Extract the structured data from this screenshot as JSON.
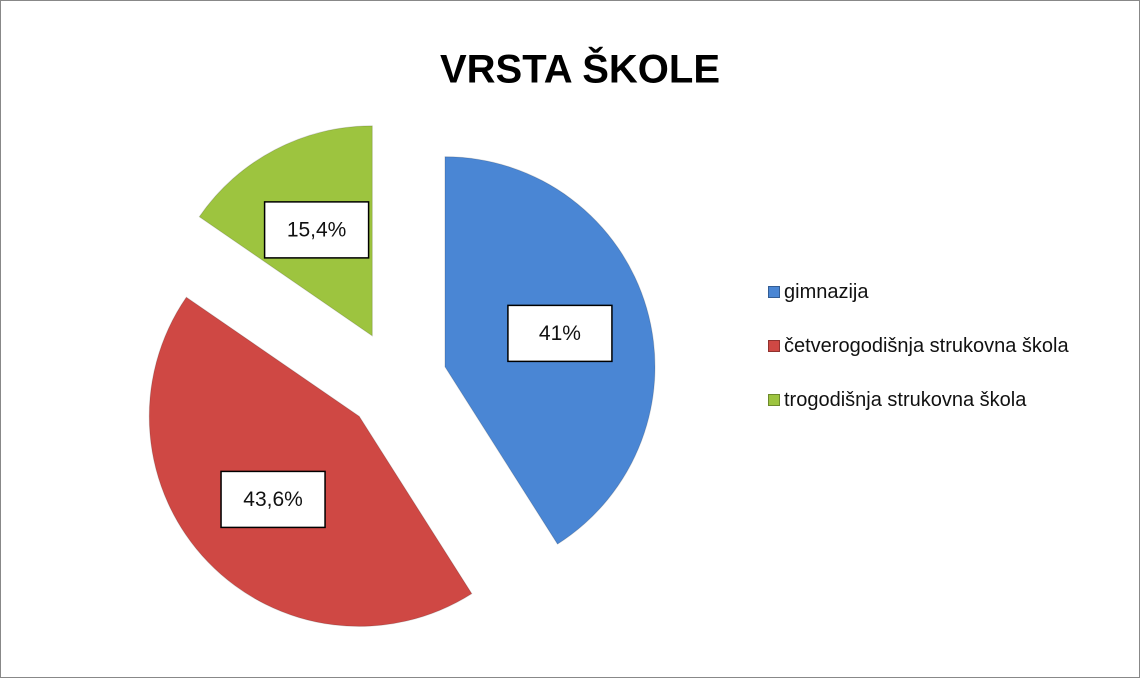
{
  "chart_data": {
    "type": "pie",
    "title": "VRSTA ŠKOLE",
    "categories": [
      "gimnazija",
      "četverogodišnja strukovna škola",
      "trogodišnja strukovna škola"
    ],
    "values": [
      41,
      43.6,
      15.4
    ],
    "value_labels": [
      "41%",
      "43,6%",
      "15,4%"
    ],
    "colors": [
      "#4a86d4",
      "#cf4844",
      "#9dc43f"
    ],
    "legend": "right"
  }
}
